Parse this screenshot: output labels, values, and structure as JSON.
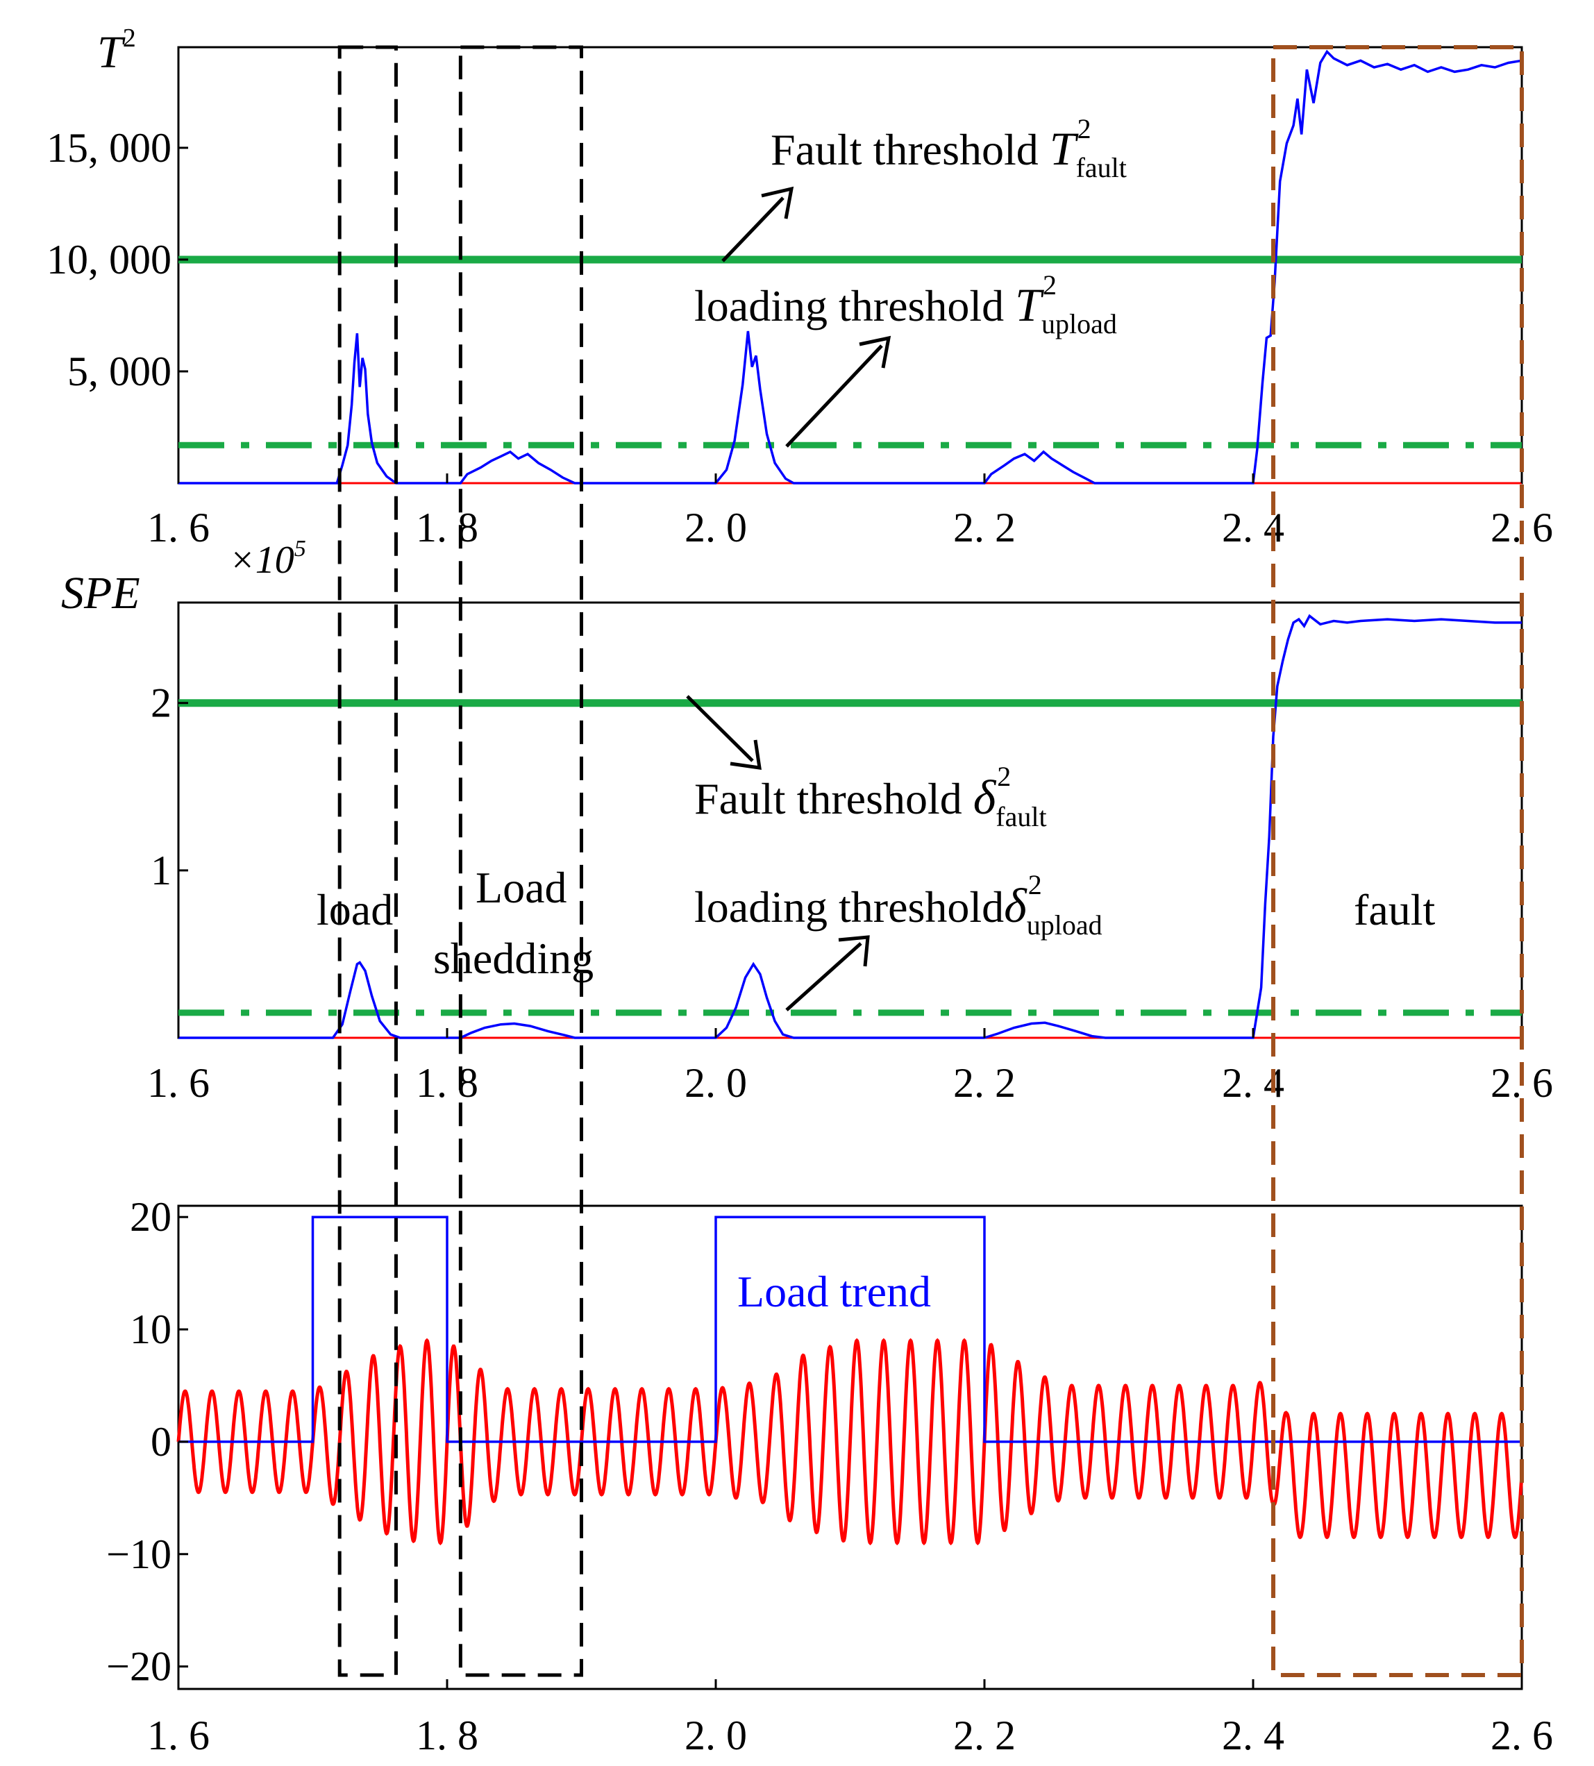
{
  "colors": {
    "signal_blue": "#0000ff",
    "baseline_red": "#ff0000",
    "threshold_green": "#1aaa46",
    "window_black": "#000000",
    "fault_window_brown": "#a0501e"
  },
  "chart_data": [
    {
      "id": "t2",
      "type": "line",
      "ylabel_base": "T",
      "ylabel_sup": "2",
      "xlim": [
        1.6,
        2.6
      ],
      "ylim": [
        0,
        19500
      ],
      "xticks": [
        "1.6",
        "1.8",
        "2.0",
        "2.2",
        "2.4",
        "2.6"
      ],
      "yticks": [
        {
          "v": 5000,
          "label": "5, 000"
        },
        {
          "v": 10000,
          "label": "10, 000"
        },
        {
          "v": 15000,
          "label": "15, 000"
        }
      ],
      "thresholds": [
        {
          "value": 10000,
          "style": "solid"
        },
        {
          "value": 1700,
          "style": "dashdot"
        }
      ],
      "annotations": [
        {
          "text": "Fault threshold ",
          "sym": "T",
          "sup": "2",
          "sub": "fault"
        },
        {
          "text": "loading threshold ",
          "sym": "T",
          "sup": "2",
          "sub": "upload"
        }
      ],
      "series": [
        {
          "color": "blue",
          "points": [
            [
              1.6,
              0
            ],
            [
              1.718,
              0
            ],
            [
              1.722,
              800
            ],
            [
              1.726,
              1700
            ],
            [
              1.729,
              3500
            ],
            [
              1.731,
              5400
            ],
            [
              1.733,
              6700
            ],
            [
              1.735,
              4300
            ],
            [
              1.737,
              5600
            ],
            [
              1.739,
              5100
            ],
            [
              1.741,
              3100
            ],
            [
              1.744,
              1800
            ],
            [
              1.748,
              900
            ],
            [
              1.755,
              300
            ],
            [
              1.762,
              0
            ],
            [
              1.81,
              0
            ],
            [
              1.815,
              400
            ],
            [
              1.825,
              700
            ],
            [
              1.833,
              1000
            ],
            [
              1.84,
              1200
            ],
            [
              1.847,
              1400
            ],
            [
              1.853,
              1100
            ],
            [
              1.86,
              1300
            ],
            [
              1.868,
              900
            ],
            [
              1.877,
              600
            ],
            [
              1.886,
              250
            ],
            [
              1.895,
              0
            ],
            [
              2.0,
              0
            ],
            [
              2.008,
              600
            ],
            [
              2.014,
              1900
            ],
            [
              2.02,
              4400
            ],
            [
              2.024,
              6800
            ],
            [
              2.027,
              5200
            ],
            [
              2.03,
              5700
            ],
            [
              2.033,
              4200
            ],
            [
              2.038,
              2200
            ],
            [
              2.044,
              900
            ],
            [
              2.052,
              200
            ],
            [
              2.058,
              0
            ],
            [
              2.2,
              0
            ],
            [
              2.205,
              400
            ],
            [
              2.215,
              800
            ],
            [
              2.222,
              1100
            ],
            [
              2.23,
              1300
            ],
            [
              2.237,
              1000
            ],
            [
              2.244,
              1400
            ],
            [
              2.25,
              1100
            ],
            [
              2.258,
              800
            ],
            [
              2.266,
              500
            ],
            [
              2.274,
              250
            ],
            [
              2.282,
              0
            ],
            [
              2.4,
              0
            ],
            [
              2.403,
              1500
            ],
            [
              2.407,
              4500
            ],
            [
              2.41,
              6500
            ],
            [
              2.413,
              6600
            ],
            [
              2.416,
              9000
            ],
            [
              2.42,
              13500
            ],
            [
              2.425,
              15200
            ],
            [
              2.43,
              16000
            ],
            [
              2.433,
              17200
            ],
            [
              2.436,
              15600
            ],
            [
              2.44,
              18500
            ],
            [
              2.445,
              17000
            ],
            [
              2.45,
              18800
            ],
            [
              2.455,
              19300
            ],
            [
              2.46,
              19000
            ],
            [
              2.47,
              18700
            ],
            [
              2.48,
              18900
            ],
            [
              2.49,
              18600
            ],
            [
              2.5,
              18750
            ],
            [
              2.51,
              18500
            ],
            [
              2.52,
              18700
            ],
            [
              2.53,
              18400
            ],
            [
              2.54,
              18600
            ],
            [
              2.55,
              18400
            ],
            [
              2.56,
              18500
            ],
            [
              2.57,
              18700
            ],
            [
              2.58,
              18600
            ],
            [
              2.59,
              18800
            ],
            [
              2.6,
              18900
            ]
          ]
        },
        {
          "color": "red",
          "points": [
            [
              1.6,
              0
            ],
            [
              2.6,
              0
            ]
          ]
        }
      ]
    },
    {
      "id": "spe",
      "type": "line",
      "ylabel": "SPE",
      "exponent": "×10",
      "exponent_sup": "5",
      "xlim": [
        1.6,
        2.6
      ],
      "ylim": [
        0,
        2.6
      ],
      "xticks": [
        "1.6",
        "1.8",
        "2.0",
        "2.2",
        "2.4",
        "2.6"
      ],
      "yticks": [
        {
          "v": 1,
          "label": "1"
        },
        {
          "v": 2,
          "label": "2"
        }
      ],
      "thresholds": [
        {
          "value": 2.0,
          "style": "solid"
        },
        {
          "value": 0.15,
          "style": "dashdot"
        }
      ],
      "annotations": [
        {
          "text": "Fault threshold ",
          "sym": "δ",
          "sup": "2",
          "sub": "fault"
        },
        {
          "text": "loading threshold",
          "sym": "δ",
          "sup": "2",
          "sub": "upload"
        },
        {
          "text": "load"
        },
        {
          "text": "Load"
        },
        {
          "text": "shedding"
        },
        {
          "text": "fault"
        }
      ],
      "series": [
        {
          "color": "blue",
          "points": [
            [
              1.6,
              0
            ],
            [
              1.715,
              0
            ],
            [
              1.722,
              0.08
            ],
            [
              1.728,
              0.28
            ],
            [
              1.733,
              0.44
            ],
            [
              1.735,
              0.45
            ],
            [
              1.739,
              0.4
            ],
            [
              1.744,
              0.25
            ],
            [
              1.75,
              0.1
            ],
            [
              1.758,
              0.02
            ],
            [
              1.765,
              0
            ],
            [
              1.81,
              0
            ],
            [
              1.818,
              0.03
            ],
            [
              1.828,
              0.06
            ],
            [
              1.84,
              0.08
            ],
            [
              1.85,
              0.085
            ],
            [
              1.862,
              0.07
            ],
            [
              1.875,
              0.04
            ],
            [
              1.888,
              0.015
            ],
            [
              1.895,
              0
            ],
            [
              2.0,
              0
            ],
            [
              2.008,
              0.06
            ],
            [
              2.015,
              0.18
            ],
            [
              2.022,
              0.36
            ],
            [
              2.028,
              0.44
            ],
            [
              2.033,
              0.38
            ],
            [
              2.038,
              0.24
            ],
            [
              2.044,
              0.1
            ],
            [
              2.05,
              0.02
            ],
            [
              2.058,
              0
            ],
            [
              2.2,
              0
            ],
            [
              2.21,
              0.025
            ],
            [
              2.222,
              0.06
            ],
            [
              2.235,
              0.085
            ],
            [
              2.245,
              0.09
            ],
            [
              2.255,
              0.07
            ],
            [
              2.268,
              0.04
            ],
            [
              2.28,
              0.01
            ],
            [
              2.29,
              0
            ],
            [
              2.4,
              0
            ],
            [
              2.403,
              0.15
            ],
            [
              2.406,
              0.3
            ],
            [
              2.409,
              0.8
            ],
            [
              2.412,
              1.2
            ],
            [
              2.415,
              1.8
            ],
            [
              2.418,
              2.1
            ],
            [
              2.422,
              2.25
            ],
            [
              2.426,
              2.38
            ],
            [
              2.43,
              2.48
            ],
            [
              2.434,
              2.5
            ],
            [
              2.438,
              2.46
            ],
            [
              2.442,
              2.52
            ],
            [
              2.45,
              2.47
            ],
            [
              2.46,
              2.49
            ],
            [
              2.47,
              2.48
            ],
            [
              2.48,
              2.49
            ],
            [
              2.5,
              2.5
            ],
            [
              2.52,
              2.49
            ],
            [
              2.54,
              2.5
            ],
            [
              2.56,
              2.49
            ],
            [
              2.58,
              2.48
            ],
            [
              2.6,
              2.48
            ]
          ]
        },
        {
          "color": "red",
          "points": [
            [
              1.6,
              0
            ],
            [
              2.6,
              0
            ]
          ]
        }
      ]
    },
    {
      "id": "signal",
      "type": "line",
      "xlim": [
        1.6,
        2.6
      ],
      "ylim": [
        -22,
        21
      ],
      "xticks": [
        "1.6",
        "1.8",
        "2.0",
        "2.2",
        "2.4",
        "2.6"
      ],
      "yticks": [
        {
          "v": -20,
          "label": "−20"
        },
        {
          "v": -10,
          "label": "−10"
        },
        {
          "v": 0,
          "label": "0"
        },
        {
          "v": 10,
          "label": "10"
        },
        {
          "v": 20,
          "label": "20"
        }
      ],
      "annotations": [
        {
          "text": "Load trend"
        }
      ],
      "series": [
        {
          "name": "Load trend",
          "color": "blue",
          "points": [
            [
              1.6,
              0
            ],
            [
              1.7,
              0
            ],
            [
              1.7,
              20
            ],
            [
              1.8,
              20
            ],
            [
              1.8,
              0
            ],
            [
              2.0,
              0
            ],
            [
              2.0,
              20
            ],
            [
              2.2,
              20
            ],
            [
              2.2,
              0
            ],
            [
              2.6,
              0
            ]
          ]
        },
        {
          "color": "red",
          "frequency_hz": 50,
          "amplitude_envelope": [
            [
              1.6,
              4.5
            ],
            [
              1.7,
              4.5
            ],
            [
              1.75,
              8
            ],
            [
              1.78,
              9
            ],
            [
              1.8,
              9
            ],
            [
              1.82,
              7
            ],
            [
              1.84,
              4.7
            ],
            [
              2.0,
              4.7
            ],
            [
              2.04,
              5.5
            ],
            [
              2.06,
              7.5
            ],
            [
              2.1,
              9
            ],
            [
              2.2,
              9
            ],
            [
              2.24,
              6
            ],
            [
              2.26,
              5
            ],
            [
              2.4,
              5
            ],
            [
              2.41,
              5.5
            ],
            [
              2.43,
              5.5
            ],
            [
              2.6,
              5.5
            ]
          ],
          "offset_envelope": [
            [
              1.6,
              0
            ],
            [
              2.415,
              0
            ],
            [
              2.425,
              -3
            ],
            [
              2.6,
              -3
            ]
          ]
        }
      ]
    }
  ],
  "detection_windows": [
    {
      "x_start": 1.72,
      "x_end": 1.762,
      "color": "black"
    },
    {
      "x_start": 1.81,
      "x_end": 1.9,
      "color": "black"
    },
    {
      "x_start": 2.415,
      "x_end": 2.6,
      "color": "brown"
    }
  ]
}
